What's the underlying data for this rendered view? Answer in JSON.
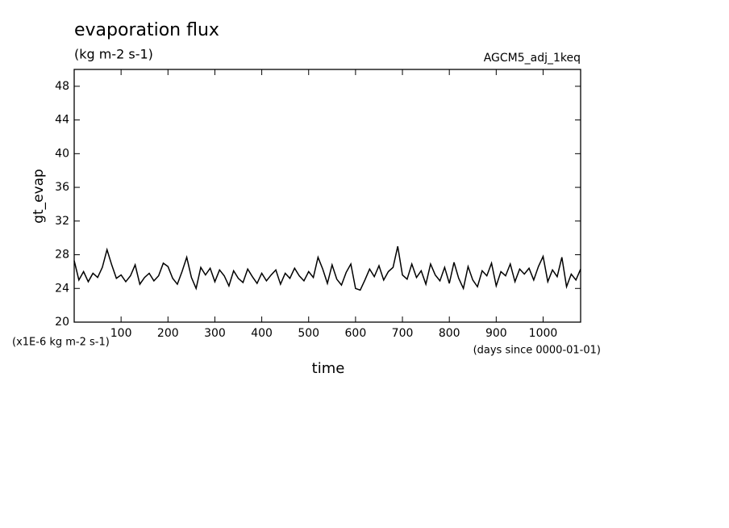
{
  "chart_data": {
    "type": "line",
    "title": "evaporation flux",
    "subtitle": "(kg m-2 s-1)",
    "annotation": "AGCM5_adj_1keq",
    "y_label": "gt_evap",
    "x_label": "time",
    "y_unit_note": "(x1E-6 kg m-2 s-1)",
    "x_unit_note": "(days since 0000-01-01)",
    "xlim": [
      0,
      1080
    ],
    "ylim": [
      20,
      50
    ],
    "xticks": [
      100,
      200,
      300,
      400,
      500,
      600,
      700,
      800,
      900,
      1000
    ],
    "yticks": [
      20,
      24,
      28,
      32,
      36,
      40,
      44,
      48
    ],
    "x": [
      0,
      10,
      20,
      30,
      40,
      50,
      60,
      70,
      80,
      90,
      100,
      110,
      120,
      130,
      140,
      150,
      160,
      170,
      180,
      190,
      200,
      210,
      220,
      230,
      240,
      250,
      260,
      270,
      280,
      290,
      300,
      310,
      320,
      330,
      340,
      350,
      360,
      370,
      380,
      390,
      400,
      410,
      420,
      430,
      440,
      450,
      460,
      470,
      480,
      490,
      500,
      510,
      520,
      530,
      540,
      550,
      560,
      570,
      580,
      590,
      600,
      610,
      620,
      630,
      640,
      650,
      660,
      670,
      680,
      690,
      700,
      710,
      720,
      730,
      740,
      750,
      760,
      770,
      780,
      790,
      800,
      810,
      820,
      830,
      840,
      850,
      860,
      870,
      880,
      890,
      900,
      910,
      920,
      930,
      940,
      950,
      960,
      970,
      980,
      990,
      1000,
      1010,
      1020,
      1030,
      1040,
      1050,
      1060,
      1070,
      1080
    ],
    "series": [
      {
        "color": "#000000",
        "values": [
          27.3,
          25,
          26,
          24.8,
          25.8,
          25.3,
          26.5,
          28.6,
          26.8,
          25.2,
          25.6,
          24.8,
          25.5,
          26.8,
          24.5,
          25.3,
          25.8,
          24.9,
          25.5,
          27,
          26.6,
          25.2,
          24.5,
          26,
          27.7,
          25.3,
          24,
          26.5,
          25.6,
          26.4,
          24.8,
          26.2,
          25.5,
          24.3,
          26.1,
          25.2,
          24.7,
          26.3,
          25.4,
          24.6,
          25.8,
          24.9,
          25.6,
          26.2,
          24.5,
          25.8,
          25.2,
          26.4,
          25.5,
          24.9,
          26,
          25.3,
          27.7,
          26.3,
          24.6,
          26.8,
          25.1,
          24.4,
          25.9,
          26.9,
          24,
          23.8,
          25,
          26.3,
          25.4,
          26.7,
          25,
          26,
          26.5,
          29,
          25.6,
          25.1,
          26.9,
          25.3,
          26.1,
          24.5,
          26.9,
          25.6,
          24.9,
          26.5,
          24.6,
          27.1,
          25.2,
          24,
          26.6,
          25,
          24.2,
          26.1,
          25.5,
          27,
          24.3,
          26,
          25.5,
          26.9,
          24.8,
          26.3,
          25.7,
          26.4,
          25,
          26.6,
          27.8,
          24.8,
          26.2,
          25.4,
          27.7,
          24.2,
          25.7,
          25,
          26.3
        ]
      }
    ]
  }
}
